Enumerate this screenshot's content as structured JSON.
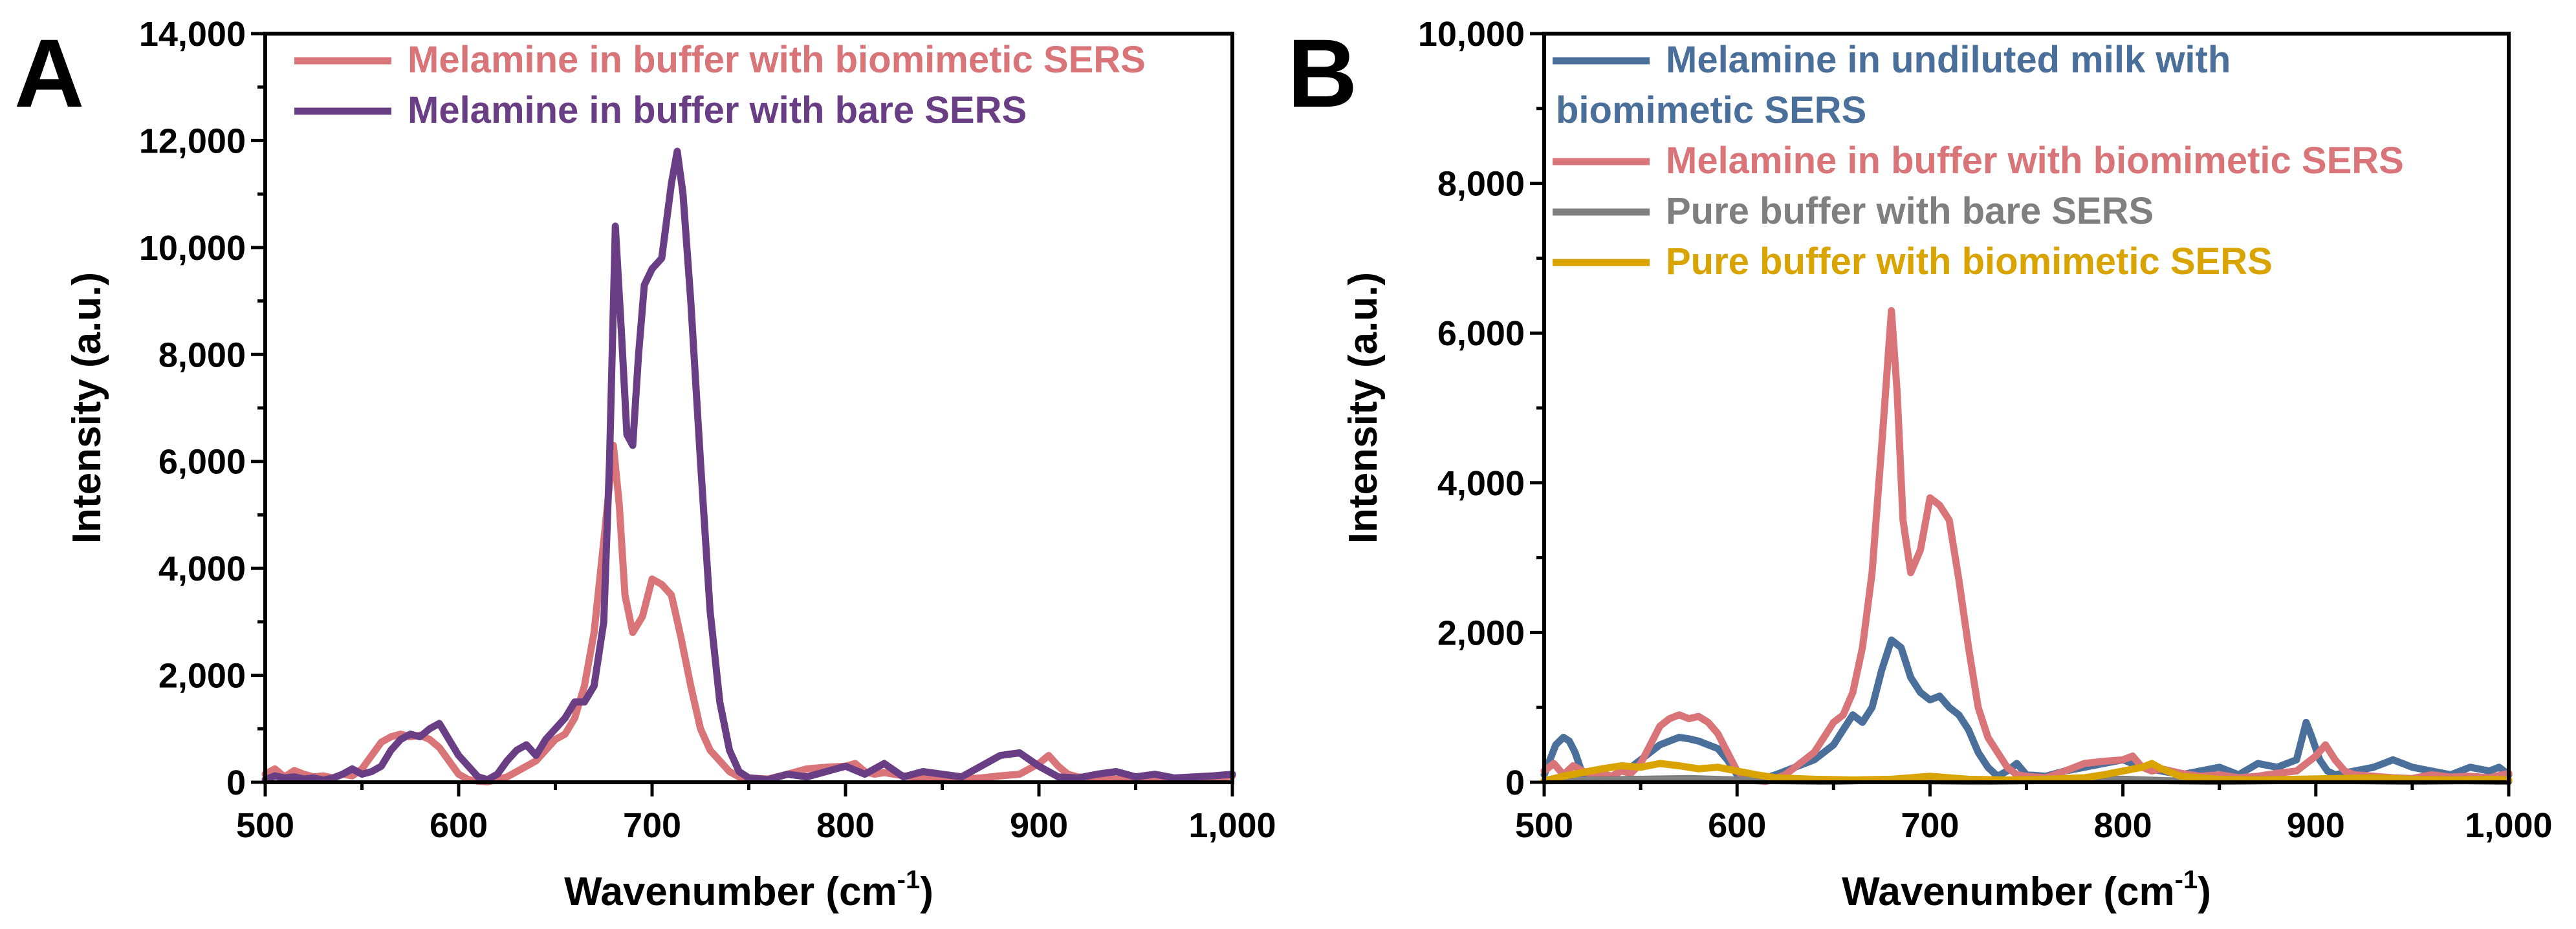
{
  "chart_data": [
    {
      "panel": "A",
      "type": "line",
      "title": "",
      "xlabel": "Wavenumber (cm",
      "xlabel_sup": "-1",
      "xlabel_end": ")",
      "ylabel": "Intensity (a.u.)",
      "xlim": [
        500,
        1000
      ],
      "ylim": [
        0,
        14000
      ],
      "x_ticks": [
        500,
        600,
        700,
        800,
        900,
        1000
      ],
      "x_tick_labels": [
        "500",
        "600",
        "700",
        "800",
        "900",
        "1,000"
      ],
      "y_ticks": [
        0,
        2000,
        4000,
        6000,
        8000,
        10000,
        12000,
        14000
      ],
      "y_tick_labels": [
        "0",
        "2,000",
        "4,000",
        "6,000",
        "8,000",
        "10,000",
        "12,000",
        "14,000"
      ],
      "legend_position": "top-left",
      "series": [
        {
          "name": "Melamine in buffer with biomimetic SERS",
          "color": "#D97478",
          "x": [
            500,
            505,
            510,
            515,
            520,
            525,
            530,
            535,
            540,
            545,
            550,
            555,
            560,
            565,
            570,
            575,
            580,
            585,
            590,
            595,
            600,
            605,
            610,
            615,
            620,
            625,
            630,
            635,
            640,
            645,
            650,
            655,
            660,
            665,
            670,
            675,
            680,
            683,
            686,
            690,
            695,
            700,
            705,
            710,
            715,
            720,
            725,
            730,
            735,
            740,
            745,
            750,
            760,
            770,
            780,
            790,
            800,
            805,
            810,
            815,
            820,
            830,
            840,
            850,
            860,
            870,
            880,
            890,
            900,
            905,
            910,
            915,
            920,
            930,
            940,
            950,
            960,
            970,
            980,
            990,
            1000
          ],
          "values": [
            150,
            250,
            100,
            220,
            150,
            100,
            120,
            80,
            150,
            120,
            250,
            500,
            750,
            850,
            900,
            850,
            880,
            800,
            650,
            400,
            150,
            50,
            20,
            10,
            50,
            100,
            200,
            300,
            400,
            600,
            800,
            900,
            1200,
            1800,
            2800,
            4500,
            6300,
            5200,
            3500,
            2800,
            3100,
            3800,
            3700,
            3500,
            2700,
            1800,
            1000,
            600,
            400,
            200,
            100,
            80,
            60,
            150,
            250,
            280,
            300,
            350,
            200,
            150,
            180,
            120,
            80,
            100,
            60,
            80,
            120,
            150,
            350,
            500,
            300,
            150,
            100,
            80,
            60,
            50,
            100,
            70,
            80,
            60,
            120
          ]
        },
        {
          "name": "Melamine in buffer with bare SERS",
          "color": "#6A3E85",
          "x": [
            500,
            505,
            510,
            515,
            520,
            525,
            530,
            535,
            540,
            545,
            550,
            555,
            560,
            565,
            570,
            575,
            580,
            585,
            590,
            595,
            600,
            605,
            610,
            615,
            620,
            625,
            630,
            635,
            640,
            645,
            650,
            655,
            660,
            665,
            670,
            675,
            678,
            681,
            684,
            687,
            690,
            693,
            696,
            700,
            705,
            710,
            713,
            716,
            720,
            725,
            730,
            735,
            740,
            745,
            750,
            760,
            770,
            780,
            790,
            800,
            810,
            820,
            830,
            840,
            850,
            860,
            870,
            880,
            890,
            900,
            910,
            920,
            930,
            940,
            950,
            960,
            970,
            980,
            990,
            1000
          ],
          "values": [
            50,
            120,
            80,
            100,
            60,
            80,
            40,
            80,
            150,
            250,
            150,
            200,
            300,
            600,
            800,
            900,
            850,
            1000,
            1100,
            800,
            500,
            300,
            100,
            50,
            150,
            400,
            600,
            700,
            500,
            800,
            1000,
            1200,
            1500,
            1500,
            1800,
            3000,
            6000,
            10400,
            8500,
            6500,
            6300,
            8000,
            9300,
            9600,
            9800,
            11200,
            11800,
            11000,
            9000,
            6000,
            3200,
            1500,
            600,
            200,
            80,
            50,
            150,
            100,
            200,
            300,
            150,
            350,
            100,
            200,
            150,
            100,
            300,
            500,
            550,
            300,
            100,
            80,
            150,
            200,
            100,
            150,
            80,
            100,
            120,
            150
          ]
        }
      ]
    },
    {
      "panel": "B",
      "type": "line",
      "title": "",
      "xlabel": "Wavenumber (cm",
      "xlabel_sup": "-1",
      "xlabel_end": ")",
      "ylabel": "Intensity (a.u.)",
      "xlim": [
        500,
        1000
      ],
      "ylim": [
        0,
        10000
      ],
      "x_ticks": [
        500,
        600,
        700,
        800,
        900,
        1000
      ],
      "x_tick_labels": [
        "500",
        "600",
        "700",
        "800",
        "900",
        "1,000"
      ],
      "y_ticks": [
        0,
        2000,
        4000,
        6000,
        8000,
        10000
      ],
      "y_tick_labels": [
        "0",
        "2,000",
        "4,000",
        "6,000",
        "8,000",
        "10,000"
      ],
      "legend_position": "top-left",
      "series": [
        {
          "name": "Melamine in undiluted milk with biomimetic SERS",
          "legend_lines": [
            "Melamine in undiluted milk with",
            "biomimetic SERS"
          ],
          "color": "#4A6F9A",
          "x": [
            500,
            503,
            506,
            510,
            513,
            516,
            520,
            525,
            530,
            535,
            540,
            545,
            550,
            555,
            560,
            565,
            570,
            575,
            580,
            585,
            590,
            595,
            600,
            605,
            610,
            615,
            620,
            625,
            630,
            640,
            650,
            655,
            660,
            665,
            670,
            675,
            680,
            685,
            690,
            695,
            700,
            705,
            710,
            715,
            720,
            725,
            730,
            735,
            740,
            745,
            750,
            760,
            770,
            780,
            790,
            800,
            810,
            820,
            830,
            840,
            850,
            860,
            870,
            880,
            890,
            895,
            898,
            902,
            906,
            910,
            920,
            930,
            940,
            950,
            960,
            970,
            980,
            990,
            995,
            1000
          ],
          "values": [
            100,
            300,
            500,
            600,
            550,
            400,
            100,
            50,
            20,
            80,
            150,
            200,
            300,
            400,
            500,
            550,
            600,
            580,
            550,
            500,
            450,
            300,
            100,
            50,
            20,
            60,
            100,
            150,
            200,
            300,
            500,
            700,
            900,
            800,
            1000,
            1500,
            1900,
            1800,
            1400,
            1200,
            1100,
            1150,
            1000,
            900,
            700,
            400,
            200,
            80,
            150,
            250,
            100,
            80,
            150,
            200,
            250,
            300,
            200,
            150,
            100,
            150,
            200,
            100,
            250,
            200,
            300,
            800,
            600,
            300,
            150,
            100,
            150,
            200,
            300,
            200,
            150,
            100,
            200,
            150,
            200,
            100
          ]
        },
        {
          "name": "Melamine in buffer with biomimetic SERS",
          "color": "#D97478",
          "x": [
            500,
            505,
            510,
            515,
            520,
            525,
            530,
            535,
            540,
            545,
            550,
            555,
            560,
            565,
            570,
            575,
            580,
            585,
            590,
            595,
            600,
            605,
            610,
            615,
            620,
            625,
            630,
            635,
            640,
            645,
            650,
            655,
            660,
            665,
            670,
            675,
            680,
            683,
            686,
            690,
            695,
            700,
            705,
            710,
            715,
            720,
            725,
            730,
            735,
            740,
            745,
            750,
            760,
            770,
            780,
            790,
            800,
            805,
            810,
            815,
            820,
            830,
            840,
            850,
            860,
            870,
            880,
            890,
            900,
            905,
            910,
            915,
            920,
            930,
            940,
            950,
            960,
            970,
            980,
            990,
            1000
          ],
          "values": [
            150,
            250,
            100,
            220,
            150,
            100,
            120,
            80,
            150,
            120,
            250,
            500,
            750,
            850,
            900,
            850,
            880,
            800,
            650,
            400,
            150,
            50,
            20,
            10,
            50,
            100,
            200,
            300,
            400,
            600,
            800,
            900,
            1200,
            1800,
            2800,
            4500,
            6300,
            5200,
            3500,
            2800,
            3100,
            3800,
            3700,
            3500,
            2700,
            1800,
            1000,
            600,
            400,
            200,
            100,
            80,
            60,
            150,
            250,
            280,
            300,
            350,
            200,
            150,
            180,
            120,
            80,
            100,
            60,
            80,
            120,
            150,
            350,
            500,
            300,
            150,
            100,
            80,
            60,
            50,
            100,
            70,
            80,
            60,
            120
          ]
        },
        {
          "name": "Pure buffer with bare SERS",
          "color": "#7F7F7F",
          "x": [
            500,
            525,
            550,
            575,
            600,
            625,
            650,
            675,
            700,
            725,
            750,
            775,
            800,
            825,
            850,
            875,
            900,
            925,
            950,
            975,
            1000
          ],
          "values": [
            20,
            30,
            40,
            50,
            30,
            20,
            10,
            30,
            20,
            10,
            20,
            30,
            40,
            20,
            10,
            20,
            30,
            20,
            10,
            20,
            10
          ]
        },
        {
          "name": "Pure buffer with biomimetic SERS",
          "color": "#D9A400",
          "x": [
            500,
            510,
            520,
            530,
            540,
            550,
            560,
            570,
            580,
            590,
            600,
            610,
            620,
            640,
            660,
            680,
            690,
            700,
            710,
            720,
            740,
            760,
            780,
            790,
            800,
            810,
            815,
            820,
            830,
            850,
            870,
            890,
            910,
            930,
            950,
            970,
            990,
            1000
          ],
          "values": [
            20,
            80,
            130,
            180,
            220,
            200,
            250,
            220,
            180,
            200,
            150,
            100,
            60,
            40,
            30,
            40,
            60,
            80,
            60,
            40,
            30,
            40,
            60,
            100,
            150,
            200,
            250,
            180,
            80,
            40,
            30,
            40,
            50,
            60,
            40,
            30,
            40,
            30
          ]
        }
      ]
    }
  ]
}
